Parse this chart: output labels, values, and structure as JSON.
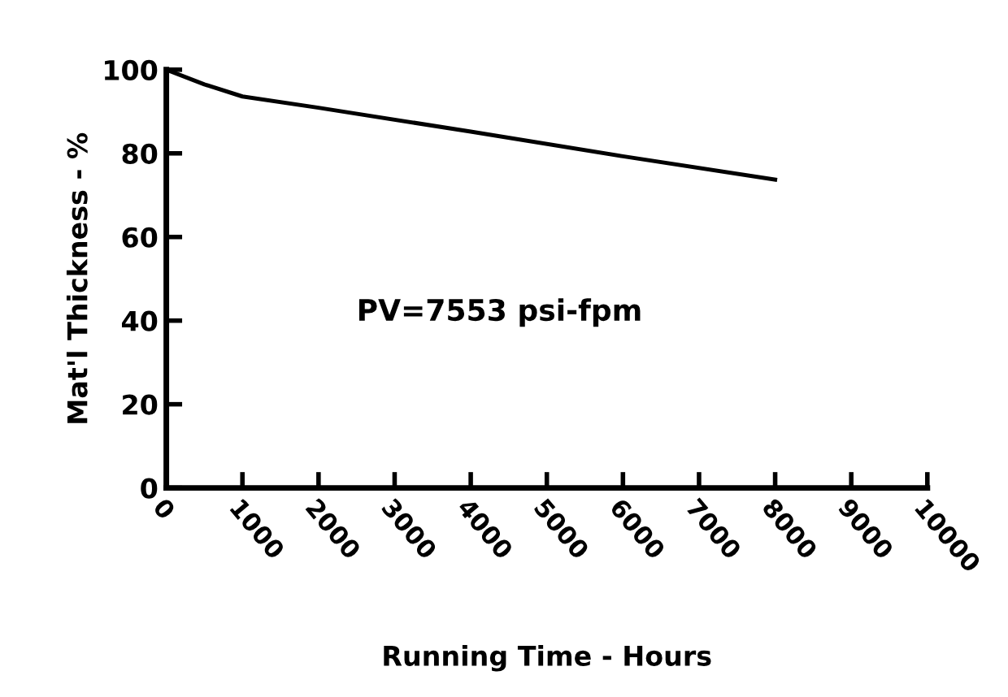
{
  "chart_data": {
    "type": "line",
    "xlabel": "Running Time - Hours",
    "ylabel": "Mat'l Thickness - %",
    "x": [
      0,
      500,
      1000,
      2000,
      4000,
      6000,
      8000
    ],
    "series": [
      {
        "color": "#000000",
        "values": [
          100,
          96.5,
          93.6,
          90.9,
          85.2,
          79.3,
          73.7
        ]
      }
    ],
    "xlim": [
      0,
      10000
    ],
    "xticks": [
      0,
      1000,
      2000,
      3000,
      4000,
      5000,
      6000,
      7000,
      8000,
      9000,
      10000
    ],
    "ylim": [
      0,
      100
    ],
    "yticks": [
      0,
      20,
      40,
      60,
      80,
      100
    ],
    "annotations": [
      "PV=7553 psi-fpm"
    ],
    "grid": false,
    "legend": false,
    "marker": "none",
    "line_style": "solid"
  }
}
